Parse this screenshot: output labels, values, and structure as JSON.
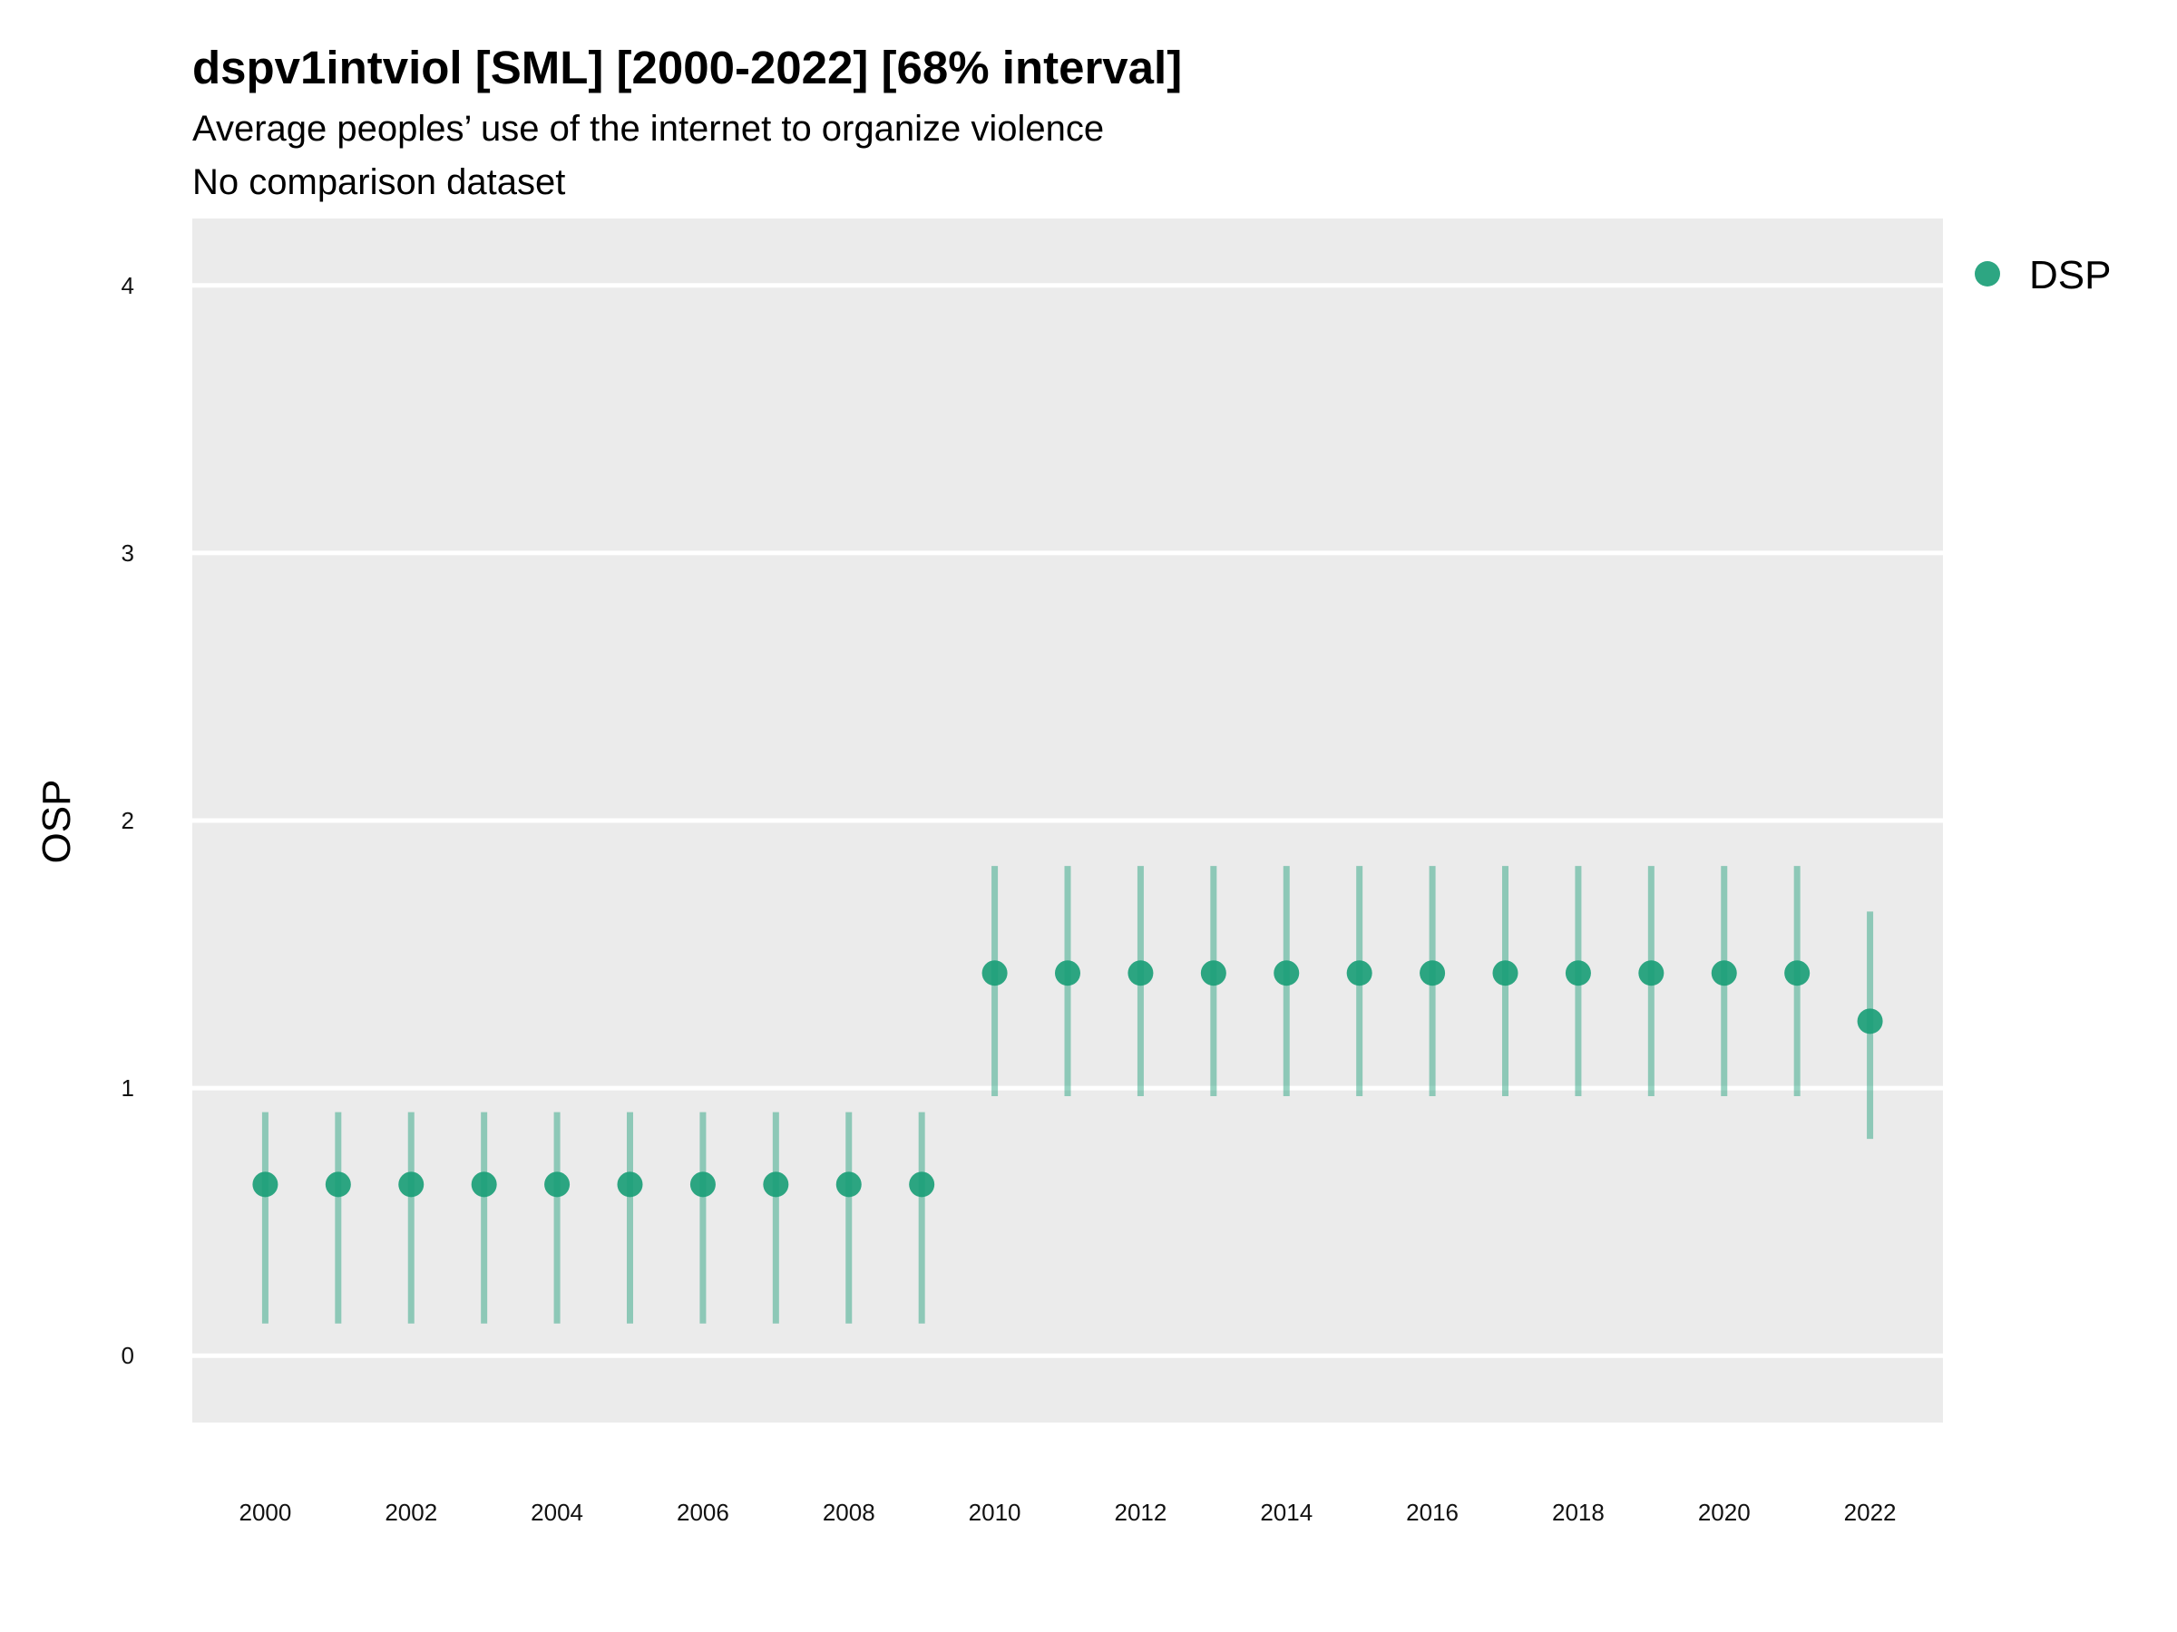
{
  "chart_data": {
    "type": "scatter",
    "title": "dspv1intviol [SML] [2000-2022] [68% interval]",
    "subtitle": "Average peoples’ use of the internet to organize violence",
    "caption": "No comparison dataset",
    "xlabel": "",
    "ylabel": "OSP",
    "xlim": [
      1999,
      2023
    ],
    "ylim": [
      -0.25,
      4.25
    ],
    "x_ticks": [
      2000,
      2002,
      2004,
      2006,
      2008,
      2010,
      2012,
      2014,
      2016,
      2018,
      2020,
      2022
    ],
    "y_ticks": [
      0,
      1,
      2,
      3,
      4
    ],
    "grid": true,
    "legend_position": "top-right",
    "series": [
      {
        "name": "DSP",
        "color": "#1b9e77",
        "x": [
          2000,
          2001,
          2002,
          2003,
          2004,
          2005,
          2006,
          2007,
          2008,
          2009,
          2010,
          2011,
          2012,
          2013,
          2014,
          2015,
          2016,
          2017,
          2018,
          2019,
          2020,
          2021,
          2022
        ],
        "y": [
          0.64,
          0.64,
          0.64,
          0.64,
          0.64,
          0.64,
          0.64,
          0.64,
          0.64,
          0.64,
          1.43,
          1.43,
          1.43,
          1.43,
          1.43,
          1.43,
          1.43,
          1.43,
          1.43,
          1.43,
          1.43,
          1.43,
          1.25
        ],
        "lower": [
          0.12,
          0.12,
          0.12,
          0.12,
          0.12,
          0.12,
          0.12,
          0.12,
          0.12,
          0.12,
          0.97,
          0.97,
          0.97,
          0.97,
          0.97,
          0.97,
          0.97,
          0.97,
          0.97,
          0.97,
          0.97,
          0.97,
          0.81
        ],
        "upper": [
          0.91,
          0.91,
          0.91,
          0.91,
          0.91,
          0.91,
          0.91,
          0.91,
          0.91,
          0.91,
          1.83,
          1.83,
          1.83,
          1.83,
          1.83,
          1.83,
          1.83,
          1.83,
          1.83,
          1.83,
          1.83,
          1.83,
          1.66
        ]
      }
    ]
  }
}
